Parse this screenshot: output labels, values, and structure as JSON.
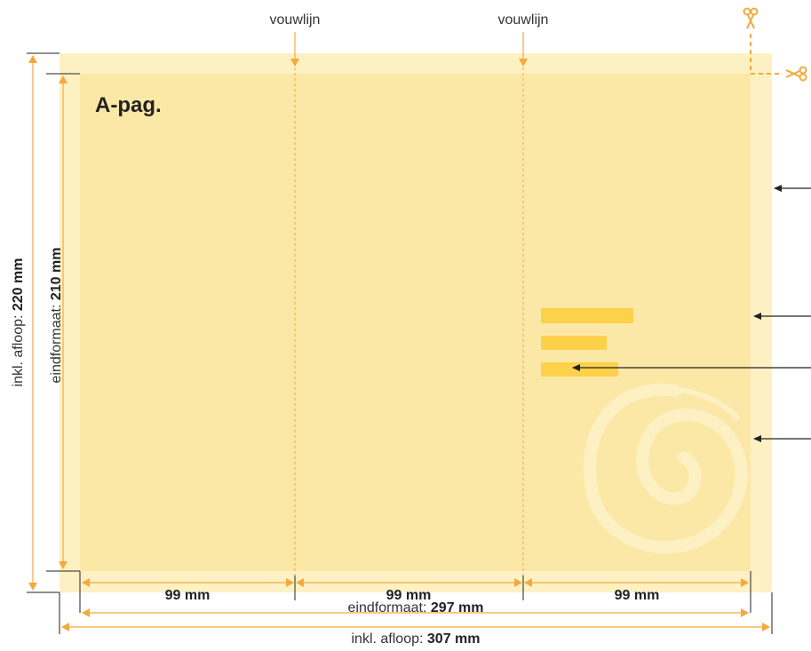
{
  "page_title": "A-pag.",
  "fold_lines": [
    {
      "label": "vouwlijn"
    },
    {
      "label": "vouwlijn"
    }
  ],
  "panels": [
    {
      "width_value": "99 mm"
    },
    {
      "width_value": "99 mm"
    },
    {
      "width_value": "99 mm"
    }
  ],
  "width_final": {
    "prefix": "eindformaat: ",
    "value": "297 mm"
  },
  "width_bleed": {
    "prefix": "inkl. afloop: ",
    "value": "307 mm"
  },
  "height_final": {
    "prefix": "eindformaat: ",
    "value": "210 mm"
  },
  "height_bleed": {
    "prefix": "inkl. afloop: ",
    "value": "220 mm"
  },
  "colors": {
    "bleed": "#fdf1c4",
    "trim": "#fce8a6",
    "accent": "#fed14a",
    "dimension": "#f5a93b",
    "fold": "#f5a93b",
    "pointer": "#222222"
  },
  "icons": [
    "scissors-icon",
    "scissors-icon"
  ]
}
